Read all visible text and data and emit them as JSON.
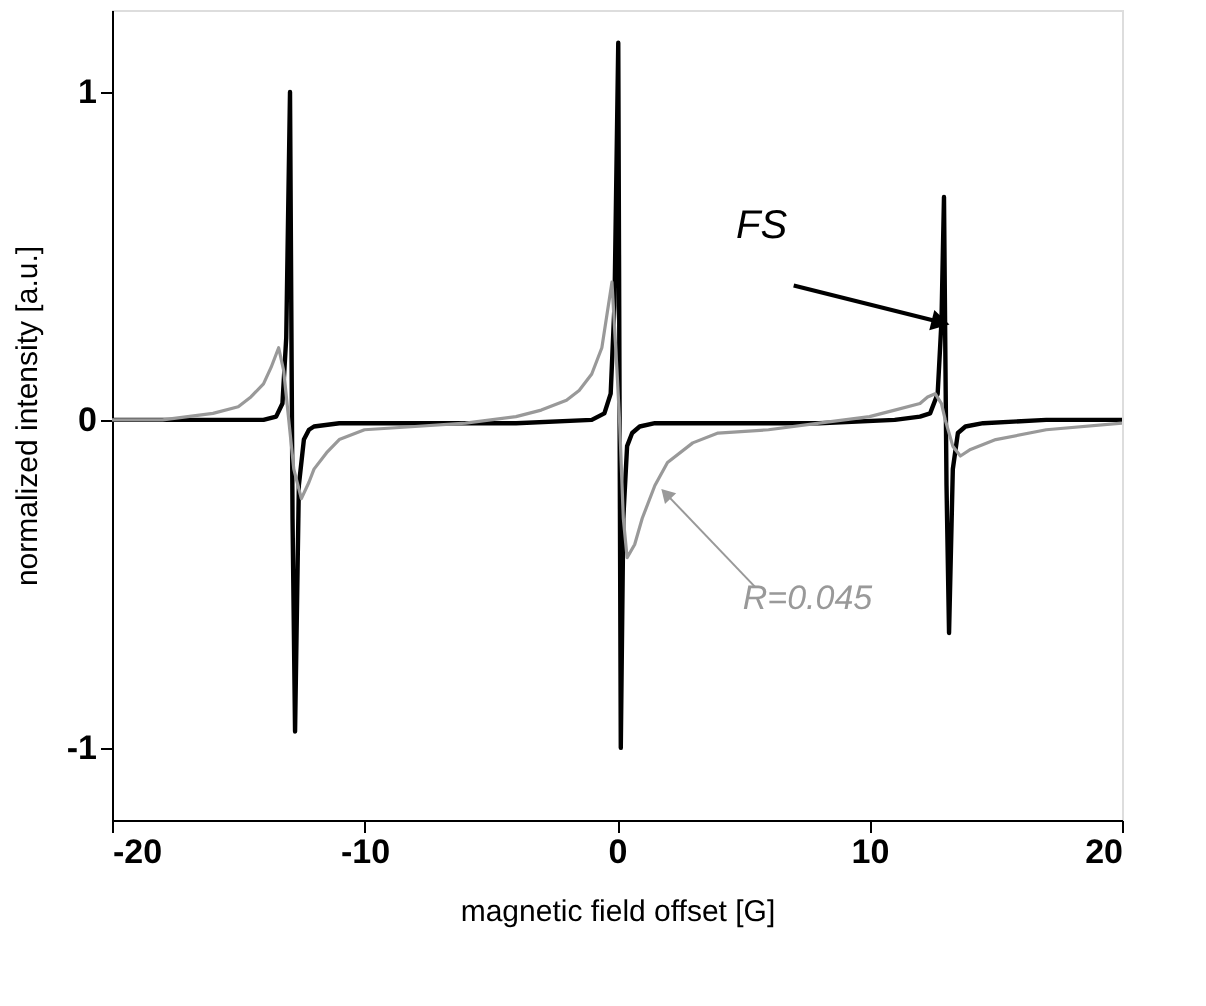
{
  "chart_data": {
    "type": "line",
    "xlabel": "magnetic field offset [G]",
    "ylabel": "normalized intensity [a.u.]",
    "xlim": [
      -20,
      20
    ],
    "ylim": [
      -1.22,
      1.25
    ],
    "xticks": [
      -20,
      -10,
      0,
      10,
      20
    ],
    "yticks": [
      -1,
      0,
      1
    ],
    "grid": false,
    "marker": "none",
    "line_style": "solid",
    "series": [
      {
        "color": "#000000",
        "x": [
          -20,
          -15,
          -14,
          -13.5,
          -13.25,
          -13.1,
          -12.95,
          -12.85,
          -12.75,
          -12.6,
          -12.4,
          -12.2,
          -12,
          -11,
          -8,
          -4,
          -1,
          -0.5,
          -0.25,
          -0.1,
          0.05,
          0.15,
          0.25,
          0.4,
          0.6,
          0.9,
          1.5,
          4,
          8,
          11,
          12,
          12.4,
          12.7,
          12.85,
          12.95,
          13.05,
          13.15,
          13.3,
          13.5,
          13.8,
          14.5,
          17,
          20
        ],
        "values": [
          0,
          0,
          0,
          0.01,
          0.05,
          0.25,
          1.0,
          -0.3,
          -0.95,
          -0.2,
          -0.06,
          -0.03,
          -0.02,
          -0.01,
          -0.01,
          -0.01,
          0,
          0.02,
          0.08,
          0.35,
          1.15,
          -1.0,
          -0.3,
          -0.08,
          -0.04,
          -0.02,
          -0.01,
          -0.01,
          -0.01,
          0,
          0.01,
          0.02,
          0.08,
          0.3,
          0.68,
          -0.2,
          -0.65,
          -0.15,
          -0.04,
          -0.02,
          -0.01,
          0,
          0
        ]
      },
      {
        "color": "#999999",
        "x": [
          -20,
          -18,
          -17,
          -16,
          -15,
          -14.5,
          -14,
          -13.7,
          -13.4,
          -13.2,
          -13.0,
          -12.8,
          -12.5,
          -12.2,
          -12,
          -11.5,
          -11,
          -10,
          -8,
          -6,
          -4,
          -3,
          -2,
          -1.5,
          -1,
          -0.6,
          -0.2,
          0,
          0.1,
          0.25,
          0.4,
          0.7,
          1,
          1.5,
          2,
          3,
          4,
          6,
          8,
          10,
          11,
          12,
          12.3,
          12.6,
          12.85,
          13.0,
          13.3,
          13.6,
          14,
          15,
          17,
          20
        ],
        "values": [
          0,
          0,
          0.01,
          0.02,
          0.04,
          0.07,
          0.11,
          0.16,
          0.22,
          0.15,
          0.0,
          -0.15,
          -0.24,
          -0.19,
          -0.15,
          -0.1,
          -0.06,
          -0.03,
          -0.02,
          -0.01,
          0.01,
          0.03,
          0.06,
          0.09,
          0.14,
          0.22,
          0.42,
          0.15,
          0.0,
          -0.3,
          -0.42,
          -0.38,
          -0.3,
          -0.2,
          -0.13,
          -0.07,
          -0.04,
          -0.03,
          -0.01,
          0.01,
          0.03,
          0.05,
          0.07,
          0.08,
          0.05,
          0.0,
          -0.08,
          -0.11,
          -0.09,
          -0.06,
          -0.03,
          -0.01
        ]
      }
    ],
    "annotations": [
      {
        "text": "FS",
        "x": 12.7,
        "y": 0.3
      },
      {
        "text": "R=0.045",
        "x": 2.0,
        "y": -0.23
      }
    ]
  }
}
